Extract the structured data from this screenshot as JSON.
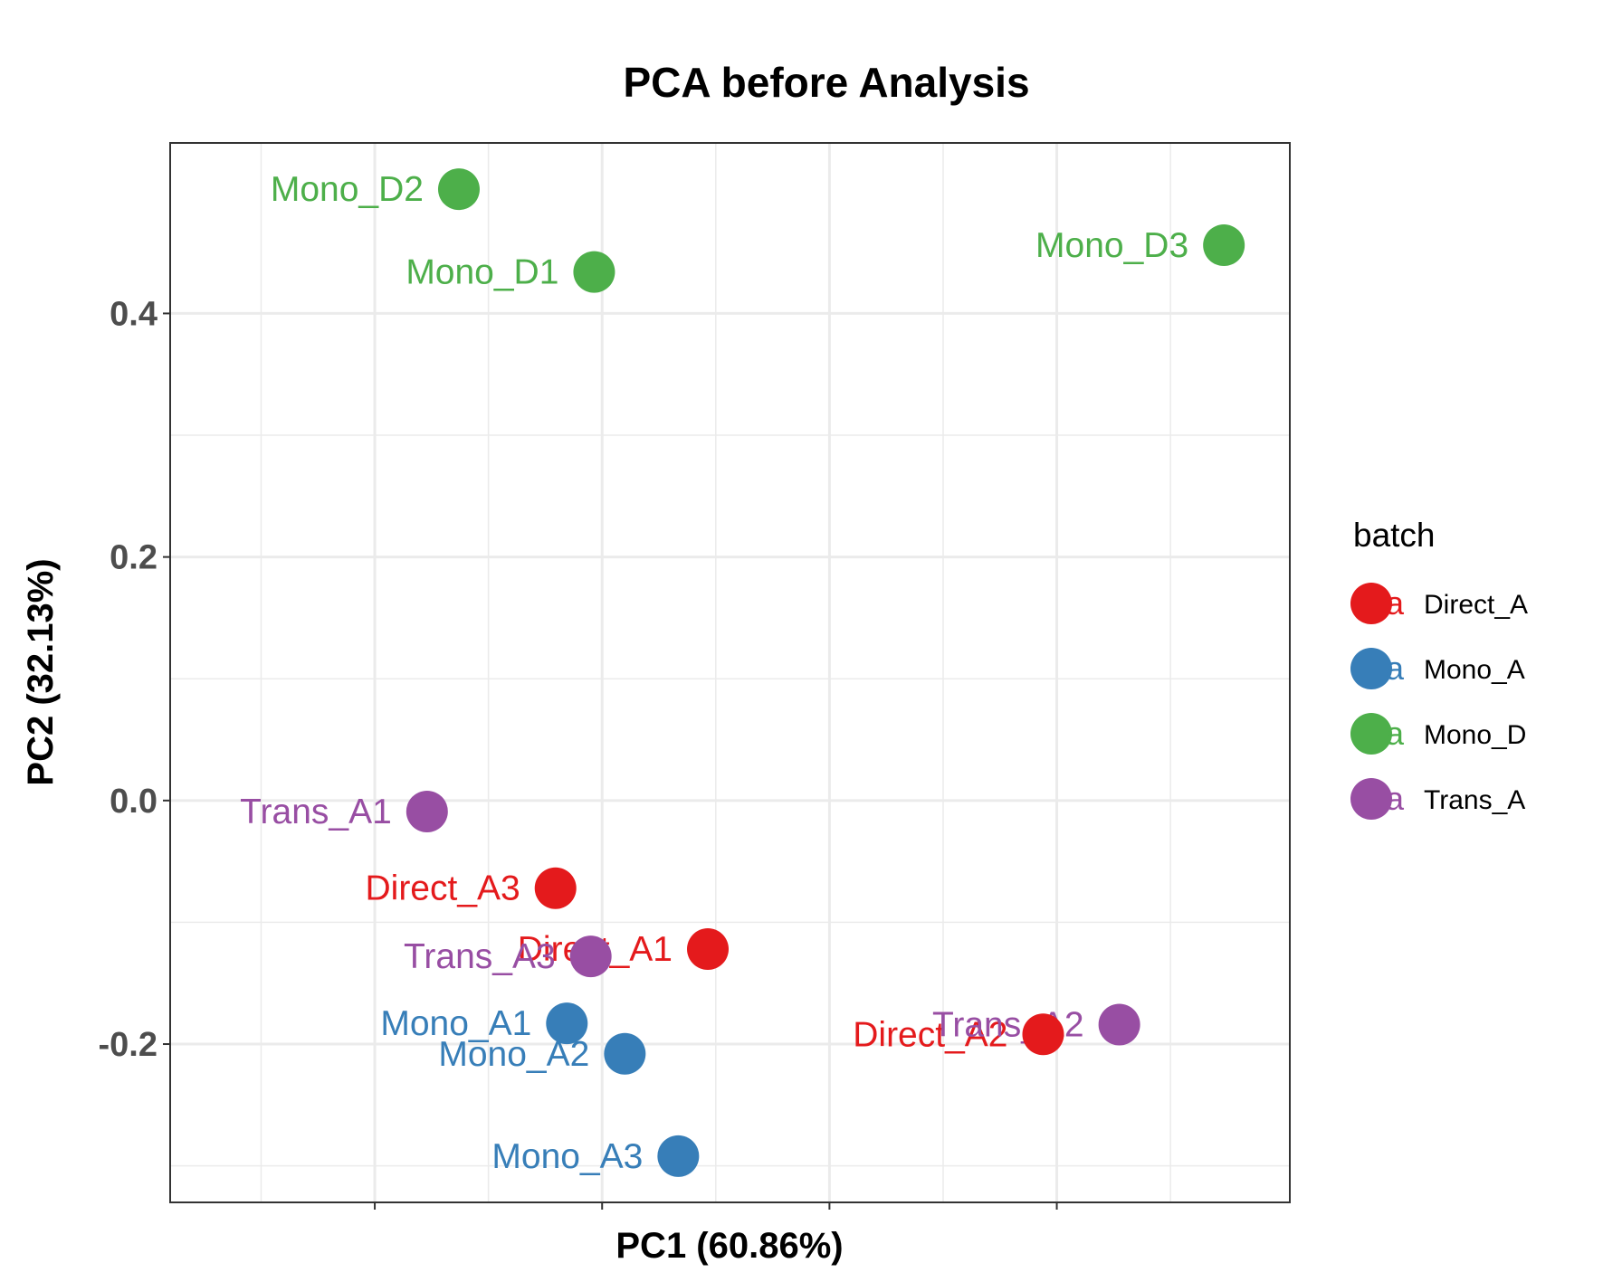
{
  "chart_data": {
    "type": "scatter",
    "title": "PCA before Analysis",
    "xlabel": "PC1 (60.86%)",
    "ylabel": "PC2 (32.13%)",
    "xlim": [
      -0.48,
      0.505
    ],
    "ylim": [
      -0.33,
      0.54
    ],
    "x_major_ticks": [
      -0.3,
      -0.1,
      0.1,
      0.3
    ],
    "x_tick_labels": [
      "",
      "",
      "",
      ""
    ],
    "x_minor_ticks": [
      -0.4,
      -0.2,
      0.0,
      0.2,
      0.4
    ],
    "y_major_ticks": [
      -0.2,
      0.0,
      0.2,
      0.4
    ],
    "y_tick_labels": [
      "-0.2",
      "0.0",
      "0.2",
      "0.4"
    ],
    "y_minor_ticks": [
      -0.3,
      -0.1,
      0.1,
      0.3
    ],
    "grid": true,
    "legend": {
      "title": "batch",
      "placement": "right",
      "key_glyph": "a",
      "entries": [
        {
          "name": "Direct_A",
          "color": "#E41A1C"
        },
        {
          "name": "Mono_A",
          "color": "#377EB8"
        },
        {
          "name": "Mono_D",
          "color": "#4DAF4A"
        },
        {
          "name": "Trans_A",
          "color": "#984EA3"
        }
      ]
    },
    "series": [
      {
        "name": "Direct_A",
        "color": "#E41A1C",
        "points": [
          {
            "label": "Direct_A1",
            "x": -0.007,
            "y": -0.122
          },
          {
            "label": "Direct_A2",
            "x": 0.288,
            "y": -0.192
          },
          {
            "label": "Direct_A3",
            "x": -0.141,
            "y": -0.072
          }
        ]
      },
      {
        "name": "Mono_A",
        "color": "#377EB8",
        "points": [
          {
            "label": "Mono_A1",
            "x": -0.131,
            "y": -0.183
          },
          {
            "label": "Mono_A2",
            "x": -0.08,
            "y": -0.208
          },
          {
            "label": "Mono_A3",
            "x": -0.033,
            "y": -0.292
          }
        ]
      },
      {
        "name": "Mono_D",
        "color": "#4DAF4A",
        "points": [
          {
            "label": "Mono_D1",
            "x": -0.107,
            "y": 0.434
          },
          {
            "label": "Mono_D2",
            "x": -0.226,
            "y": 0.502
          },
          {
            "label": "Mono_D3",
            "x": 0.447,
            "y": 0.456
          }
        ]
      },
      {
        "name": "Trans_A",
        "color": "#984EA3",
        "points": [
          {
            "label": "Trans_A1",
            "x": -0.254,
            "y": -0.009
          },
          {
            "label": "Trans_A2",
            "x": 0.355,
            "y": -0.184
          },
          {
            "label": "Trans_A3",
            "x": -0.11,
            "y": -0.128
          }
        ]
      }
    ]
  }
}
